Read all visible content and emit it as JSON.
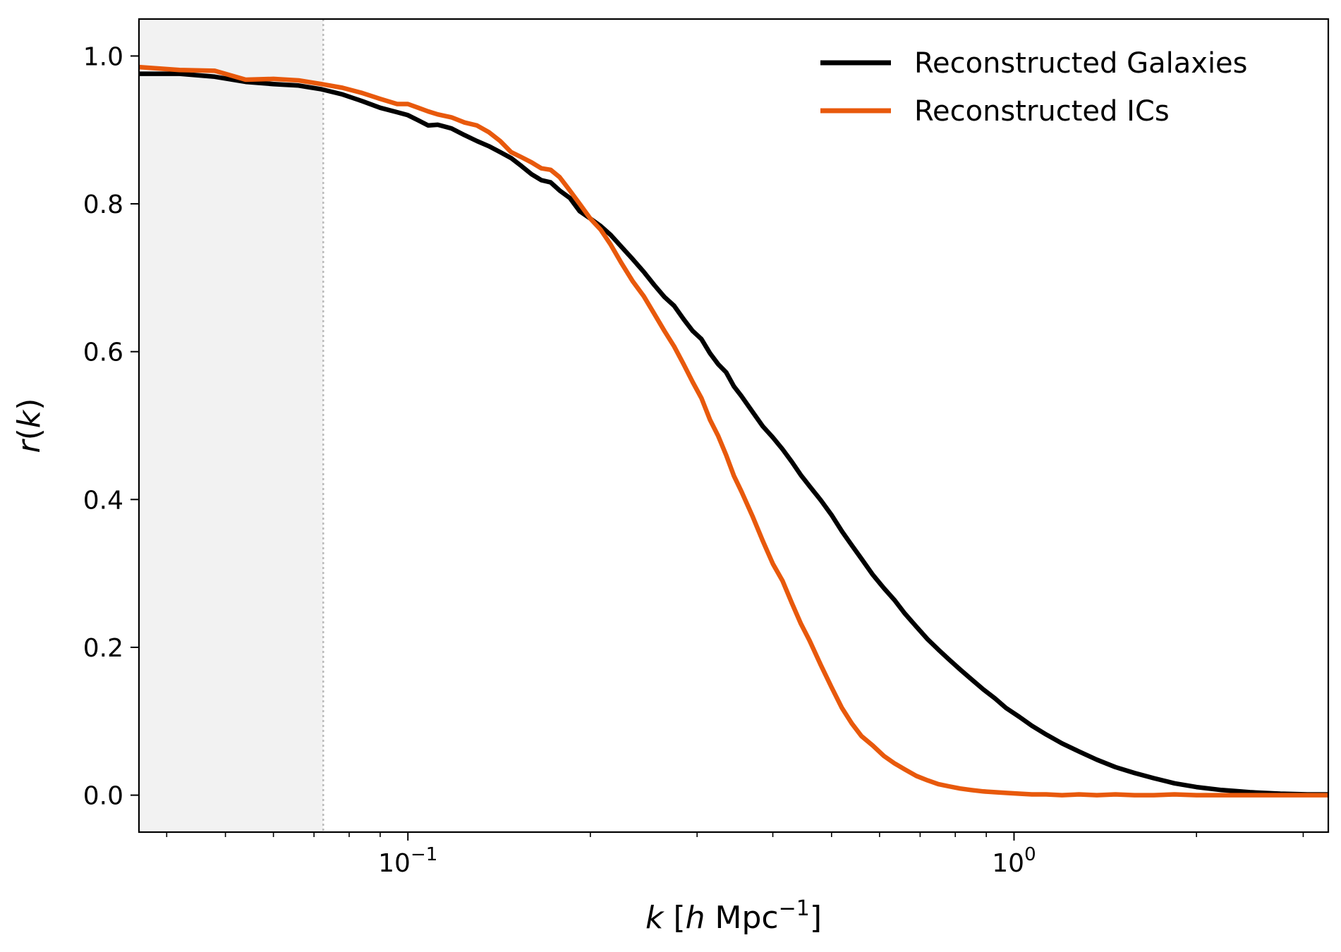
{
  "chart_data": {
    "type": "line",
    "x_scale": "log",
    "xlim": [
      0.036,
      3.3
    ],
    "ylim": [
      -0.05,
      1.05
    ],
    "xlabel": {
      "k": "k",
      "open": " [",
      "h": "h",
      "unit": " Mpc",
      "exp": "−1",
      "close": "]"
    },
    "ylabel": {
      "r": "r",
      "open": "(",
      "k": "k",
      "close": ")"
    },
    "x_major_ticks": [
      {
        "value": 0.1,
        "base": "10",
        "exp": "−1"
      },
      {
        "value": 1.0,
        "base": "10",
        "exp": "0"
      }
    ],
    "x_minor_ticks": [
      0.04,
      0.05,
      0.06,
      0.07,
      0.08,
      0.09,
      0.2,
      0.3,
      0.4,
      0.5,
      0.6,
      0.7,
      0.8,
      0.9,
      2,
      3
    ],
    "y_ticks": [
      {
        "value": 0.0,
        "label": "0.0"
      },
      {
        "value": 0.2,
        "label": "0.2"
      },
      {
        "value": 0.4,
        "label": "0.4"
      },
      {
        "value": 0.6,
        "label": "0.6"
      },
      {
        "value": 0.8,
        "label": "0.8"
      },
      {
        "value": 1.0,
        "label": "1.0"
      }
    ],
    "shaded_region": {
      "x_start": 0.036,
      "x_end": 0.0725,
      "color": "#f2f2f2"
    },
    "cutoff_line": {
      "x": 0.0725,
      "color": "#bbbbbb",
      "style": "dotted"
    },
    "legend_position": "top-right",
    "series": [
      {
        "name": "Reconstructed Galaxies",
        "color": "#000000",
        "x": [
          0.036,
          0.042,
          0.048,
          0.054,
          0.06,
          0.066,
          0.072,
          0.078,
          0.084,
          0.09,
          0.096,
          0.1,
          0.104,
          0.108,
          0.112,
          0.118,
          0.124,
          0.13,
          0.136,
          0.142,
          0.148,
          0.154,
          0.16,
          0.166,
          0.172,
          0.178,
          0.185,
          0.192,
          0.2,
          0.208,
          0.216,
          0.225,
          0.235,
          0.245,
          0.255,
          0.265,
          0.275,
          0.285,
          0.295,
          0.305,
          0.315,
          0.325,
          0.335,
          0.345,
          0.355,
          0.37,
          0.385,
          0.4,
          0.415,
          0.43,
          0.445,
          0.46,
          0.48,
          0.5,
          0.52,
          0.54,
          0.56,
          0.585,
          0.61,
          0.635,
          0.66,
          0.69,
          0.72,
          0.75,
          0.78,
          0.815,
          0.85,
          0.89,
          0.93,
          0.97,
          1.02,
          1.07,
          1.13,
          1.2,
          1.28,
          1.37,
          1.47,
          1.58,
          1.7,
          1.84,
          2.0,
          2.2,
          2.45,
          2.75,
          3.05,
          3.3
        ],
        "y": [
          0.976,
          0.976,
          0.972,
          0.965,
          0.962,
          0.96,
          0.955,
          0.948,
          0.939,
          0.93,
          0.924,
          0.92,
          0.913,
          0.906,
          0.907,
          0.902,
          0.893,
          0.885,
          0.878,
          0.87,
          0.862,
          0.851,
          0.84,
          0.832,
          0.829,
          0.818,
          0.808,
          0.79,
          0.78,
          0.77,
          0.758,
          0.742,
          0.725,
          0.708,
          0.69,
          0.674,
          0.662,
          0.644,
          0.628,
          0.617,
          0.598,
          0.583,
          0.572,
          0.553,
          0.54,
          0.519,
          0.499,
          0.484,
          0.468,
          0.451,
          0.433,
          0.418,
          0.399,
          0.379,
          0.357,
          0.338,
          0.32,
          0.298,
          0.28,
          0.264,
          0.246,
          0.228,
          0.211,
          0.197,
          0.184,
          0.17,
          0.157,
          0.143,
          0.131,
          0.118,
          0.106,
          0.094,
          0.082,
          0.07,
          0.059,
          0.048,
          0.038,
          0.03,
          0.023,
          0.016,
          0.011,
          0.007,
          0.004,
          0.002,
          0.001,
          0.001
        ]
      },
      {
        "name": "Reconstructed ICs",
        "color": "#e8590c",
        "x": [
          0.036,
          0.042,
          0.048,
          0.054,
          0.06,
          0.066,
          0.072,
          0.078,
          0.084,
          0.09,
          0.096,
          0.1,
          0.104,
          0.108,
          0.112,
          0.118,
          0.124,
          0.13,
          0.136,
          0.142,
          0.148,
          0.154,
          0.16,
          0.166,
          0.172,
          0.178,
          0.185,
          0.192,
          0.2,
          0.208,
          0.216,
          0.225,
          0.235,
          0.245,
          0.255,
          0.265,
          0.275,
          0.285,
          0.295,
          0.305,
          0.315,
          0.325,
          0.335,
          0.345,
          0.355,
          0.37,
          0.385,
          0.4,
          0.415,
          0.43,
          0.445,
          0.46,
          0.48,
          0.5,
          0.52,
          0.54,
          0.56,
          0.585,
          0.61,
          0.635,
          0.66,
          0.69,
          0.72,
          0.75,
          0.78,
          0.815,
          0.85,
          0.89,
          0.93,
          0.97,
          1.02,
          1.07,
          1.13,
          1.2,
          1.28,
          1.37,
          1.47,
          1.58,
          1.7,
          1.84,
          2.0,
          2.2,
          2.45,
          2.75,
          3.05,
          3.3
        ],
        "y": [
          0.985,
          0.981,
          0.98,
          0.968,
          0.969,
          0.967,
          0.962,
          0.957,
          0.95,
          0.942,
          0.935,
          0.935,
          0.93,
          0.925,
          0.921,
          0.917,
          0.91,
          0.906,
          0.897,
          0.885,
          0.87,
          0.863,
          0.856,
          0.848,
          0.846,
          0.836,
          0.818,
          0.8,
          0.78,
          0.765,
          0.745,
          0.72,
          0.695,
          0.675,
          0.651,
          0.628,
          0.607,
          0.583,
          0.559,
          0.537,
          0.508,
          0.486,
          0.46,
          0.432,
          0.411,
          0.378,
          0.344,
          0.313,
          0.29,
          0.26,
          0.232,
          0.209,
          0.176,
          0.146,
          0.118,
          0.097,
          0.08,
          0.067,
          0.053,
          0.043,
          0.035,
          0.026,
          0.02,
          0.015,
          0.012,
          0.009,
          0.007,
          0.005,
          0.004,
          0.003,
          0.002,
          0.001,
          0.001,
          0.0,
          0.001,
          0.0,
          0.001,
          0.0,
          0.0,
          0.001,
          0.0,
          0.0,
          0.0,
          0.0,
          0.0,
          0.0
        ]
      }
    ]
  }
}
